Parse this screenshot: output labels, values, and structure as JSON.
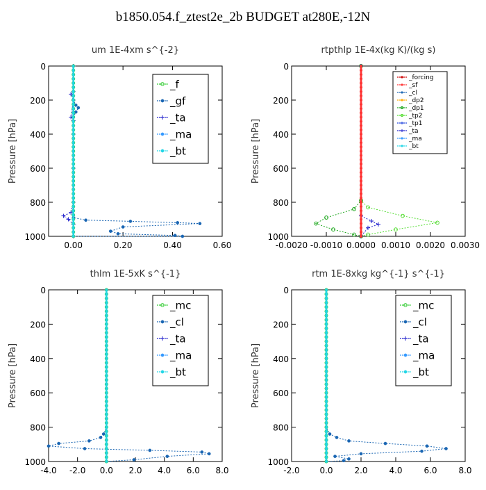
{
  "title": "b1850.054.f_ztest2e_2b  BUDGET at280E,-12N",
  "colors": {
    "_f": "#33cc33",
    "_gf": "#1a66b3",
    "_ta": "#2222cc",
    "_ma": "#3399ff",
    "_bt": "#22d6e6",
    "_mc": "#33cc33",
    "_cl": "#1a66b3",
    "_forcing": "#cc0000",
    "_sf": "#ff3333",
    "_dp2": "#ffaa00",
    "_dp1": "#1fa81f",
    "_tp2": "#55dd33",
    "_tp1": "#2244dd"
  },
  "chart_data": [
    {
      "type": "line",
      "title": "um   1E-4xm s^{-2}",
      "ylabel": "Pressure [hPa]",
      "xlim": [
        -0.1,
        0.6
      ],
      "ylim": [
        1000,
        0
      ],
      "xticks": [
        "0.00",
        "0.20",
        "0.40",
        "0.60"
      ],
      "xtick_values": [
        0.0,
        0.2,
        0.4,
        0.6
      ],
      "yticks": [
        "0",
        "200",
        "400",
        "600",
        "800",
        "1000"
      ],
      "ytick_values": [
        0,
        200,
        400,
        600,
        800,
        1000
      ],
      "legend": [
        "_f",
        "_gf",
        "_ta",
        "_ma",
        "_bt"
      ],
      "series": [
        {
          "name": "_ta",
          "x": [
            0.0,
            0.0,
            -0.01,
            0.0,
            -0.01,
            0.0,
            0.0,
            0.0,
            0.0,
            -0.01,
            -0.04,
            -0.02,
            0.0,
            0.0
          ],
          "y": [
            0,
            150,
            165,
            200,
            300,
            320,
            400,
            600,
            800,
            860,
            880,
            900,
            930,
            1000
          ]
        },
        {
          "name": "_gf",
          "x": [
            0.0,
            0.0,
            0.01,
            0.02,
            0.01,
            0.0,
            0.0,
            0.0,
            0.0,
            0.05,
            0.23,
            0.42,
            0.51,
            0.2,
            0.15,
            0.18,
            0.41,
            0.44,
            0.0
          ],
          "y": [
            0,
            200,
            230,
            245,
            270,
            300,
            500,
            800,
            890,
            905,
            912,
            920,
            925,
            945,
            970,
            985,
            995,
            1000,
            1000
          ]
        },
        {
          "name": "_f",
          "x": [
            0.0,
            0.0
          ],
          "y": [
            0,
            1000
          ]
        },
        {
          "name": "_bt",
          "x": [
            0.0,
            0.0
          ],
          "y": [
            0,
            1000
          ]
        }
      ]
    },
    {
      "type": "line",
      "title": "rtpthlp   1E-4x(kg K)/(kg s)",
      "ylabel": "Pressure [hPa]",
      "xlim": [
        -0.002,
        0.003
      ],
      "ylim": [
        1000,
        0
      ],
      "xticks": [
        "-0.0020",
        "-0.0010",
        "0.0000",
        "0.0010",
        "0.0020",
        "0.0030"
      ],
      "xtick_values": [
        -0.002,
        -0.001,
        0.0,
        0.001,
        0.002,
        0.003
      ],
      "yticks": [
        "0",
        "200",
        "400",
        "600",
        "800",
        "1000"
      ],
      "ytick_values": [
        0,
        200,
        400,
        600,
        800,
        1000
      ],
      "legend": [
        "_forcing",
        "_sf",
        "_cl",
        "_dp2",
        "_dp1",
        "_tp2",
        "_tp1",
        "_ta",
        "_ma",
        "_bt"
      ],
      "series": [
        {
          "name": "_tp2",
          "x": [
            0.0,
            0.0,
            0.0002,
            0.0012,
            0.0022,
            0.001,
            0.0002,
            0.0
          ],
          "y": [
            0,
            790,
            830,
            880,
            920,
            960,
            990,
            1000
          ]
        },
        {
          "name": "_dp1",
          "x": [
            0.0,
            0.0,
            -0.0002,
            -0.001,
            -0.0013,
            -0.0008,
            -0.0002,
            0.0
          ],
          "y": [
            0,
            790,
            840,
            890,
            925,
            960,
            990,
            1000
          ]
        },
        {
          "name": "_ta",
          "x": [
            0.0,
            0.0,
            0.0003,
            0.0005,
            0.0002,
            0.0
          ],
          "y": [
            0,
            880,
            910,
            930,
            950,
            1000
          ]
        },
        {
          "name": "_forcing",
          "x": [
            0.0,
            0.0
          ],
          "y": [
            0,
            1000
          ]
        },
        {
          "name": "_sf",
          "x": [
            0.0,
            0.0
          ],
          "y": [
            0,
            1000
          ]
        }
      ]
    },
    {
      "type": "line",
      "title": "thlm   1E-5xK s^{-1}",
      "ylabel": "Pressure [hPa]",
      "xlim": [
        -4.0,
        8.0
      ],
      "ylim": [
        1000,
        0
      ],
      "xticks": [
        "-4.0",
        "-2.0",
        "0.0",
        "2.0",
        "4.0",
        "6.0",
        "8.0"
      ],
      "xtick_values": [
        -4,
        -2,
        0,
        2,
        4,
        6,
        8
      ],
      "yticks": [
        "0",
        "200",
        "400",
        "600",
        "800",
        "1000"
      ],
      "ytick_values": [
        0,
        200,
        400,
        600,
        800,
        1000
      ],
      "legend": [
        "_mc",
        "_cl",
        "_ta",
        "_ma",
        "_bt"
      ],
      "series": [
        {
          "name": "_cl",
          "x": [
            0.0,
            0.0,
            -0.2,
            -0.4,
            -1.2,
            -3.3,
            -4.0,
            -1.5,
            3.0,
            6.6,
            7.1,
            4.2,
            1.9,
            0.0
          ],
          "y": [
            0,
            800,
            840,
            860,
            880,
            895,
            910,
            925,
            935,
            945,
            955,
            970,
            990,
            1000
          ]
        },
        {
          "name": "_mc",
          "x": [
            0.0,
            0.0
          ],
          "y": [
            0,
            1000
          ]
        },
        {
          "name": "_bt",
          "x": [
            0.0,
            0.0
          ],
          "y": [
            0,
            1000
          ]
        }
      ]
    },
    {
      "type": "line",
      "title": "rtm   1E-8xkg kg^{-1} s^{-1}",
      "ylabel": "Pressure [hPa]",
      "xlim": [
        -2.0,
        8.0
      ],
      "ylim": [
        1000,
        0
      ],
      "xticks": [
        "-2.0",
        "0.0",
        "2.0",
        "4.0",
        "6.0",
        "8.0"
      ],
      "xtick_values": [
        -2,
        0,
        2,
        4,
        6,
        8
      ],
      "yticks": [
        "0",
        "200",
        "400",
        "600",
        "800",
        "1000"
      ],
      "ytick_values": [
        0,
        200,
        400,
        600,
        800,
        1000
      ],
      "legend": [
        "_mc",
        "_cl",
        "_ta",
        "_ma",
        "_bt"
      ],
      "series": [
        {
          "name": "_cl",
          "x": [
            0.0,
            0.0,
            0.2,
            0.6,
            1.3,
            3.4,
            5.8,
            6.9,
            5.5,
            2.0,
            0.5,
            1.3,
            1.0,
            0.0
          ],
          "y": [
            0,
            800,
            840,
            860,
            880,
            895,
            910,
            925,
            940,
            955,
            970,
            985,
            995,
            1000
          ]
        },
        {
          "name": "_mc",
          "x": [
            0.0,
            0.0
          ],
          "y": [
            0,
            1000
          ]
        },
        {
          "name": "_bt",
          "x": [
            0.0,
            0.0
          ],
          "y": [
            0,
            1000
          ]
        }
      ]
    }
  ]
}
